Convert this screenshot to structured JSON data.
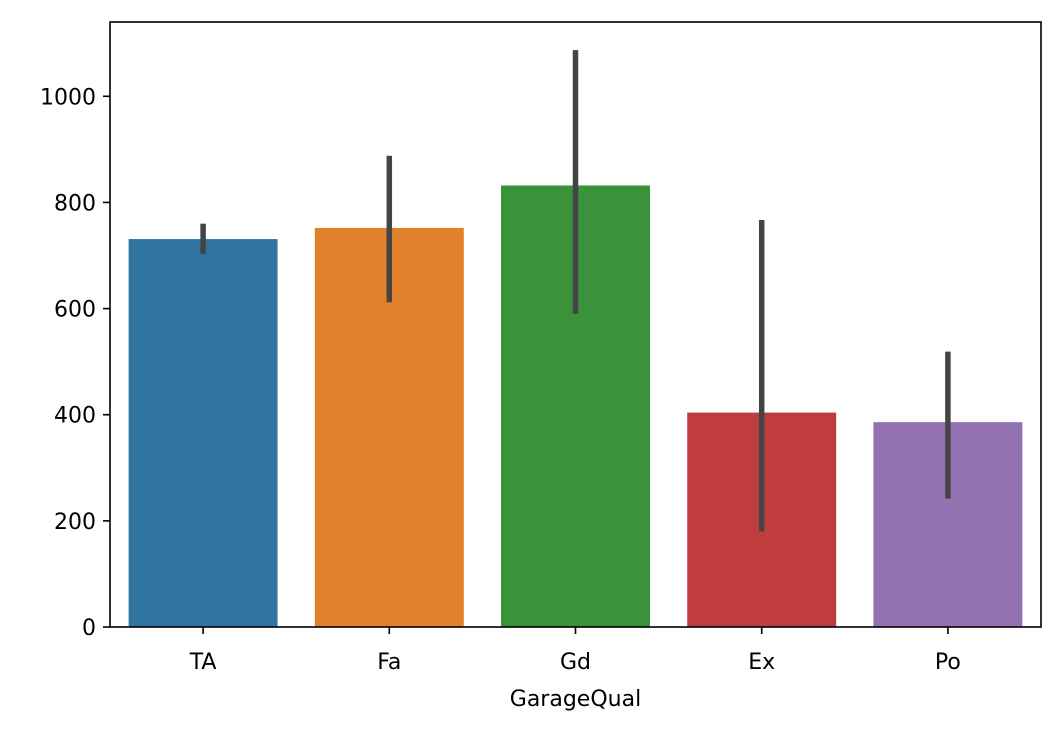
{
  "chart_data": {
    "type": "bar",
    "title": "",
    "xlabel": "GarageQual",
    "ylabel": "",
    "categories": [
      "TA",
      "Fa",
      "Gd",
      "Ex",
      "Po"
    ],
    "values": [
      731,
      752,
      832,
      404,
      386
    ],
    "error_low": [
      703,
      612,
      590,
      180,
      242
    ],
    "error_high": [
      760,
      888,
      1087,
      767,
      519
    ],
    "colors": [
      "#3274a1",
      "#e1812c",
      "#3a923a",
      "#c03d3e",
      "#9372b2"
    ],
    "error_color": "#444444",
    "ylim": [
      0,
      1140
    ],
    "yticks": [
      0,
      200,
      400,
      600,
      800,
      1000
    ],
    "grid": false,
    "legend": "none"
  }
}
